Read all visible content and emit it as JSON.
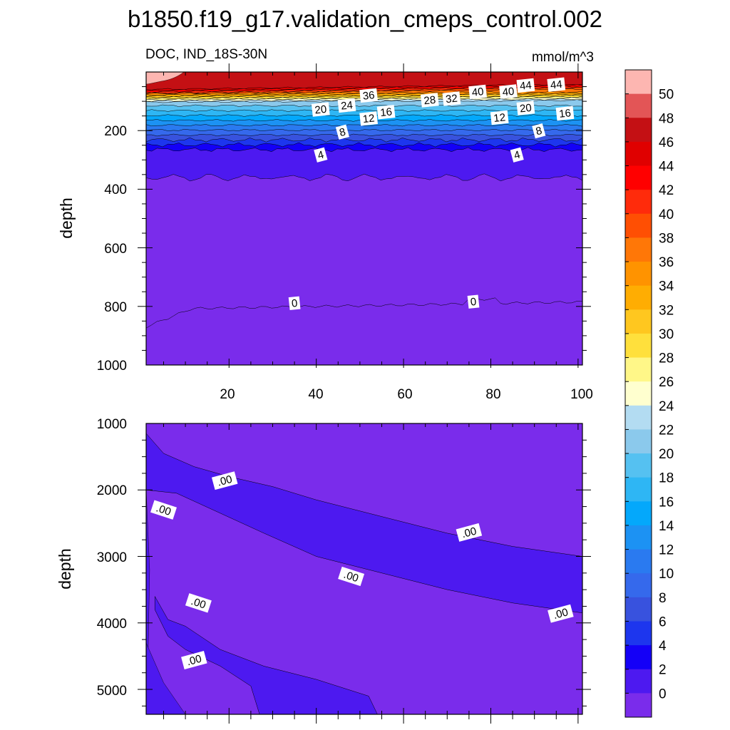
{
  "chart_data": {
    "title": "b1850.f19_g17.validation_cmeps_control.002",
    "variable_label": "DOC, IND_18S-30N",
    "units": "mmol/m^3",
    "type": "contour",
    "panels": [
      {
        "name": "upper",
        "xlabel": "",
        "ylabel": "depth",
        "xlim": [
          1,
          101
        ],
        "ylim": [
          1000,
          0
        ],
        "x_ticks": [
          "20",
          "40",
          "60",
          "80",
          "100"
        ],
        "y_ticks": [
          "200",
          "400",
          "600",
          "800",
          "1000"
        ],
        "contour_labels": [
          {
            "text": "44",
            "x": 88,
            "y": 46
          },
          {
            "text": "44",
            "x": 95,
            "y": 43
          },
          {
            "text": "40",
            "x": 77,
            "y": 68
          },
          {
            "text": "40",
            "x": 84,
            "y": 67
          },
          {
            "text": "36",
            "x": 52,
            "y": 80
          },
          {
            "text": "32",
            "x": 71,
            "y": 91
          },
          {
            "text": "28",
            "x": 66,
            "y": 96
          },
          {
            "text": "24",
            "x": 47,
            "y": 114
          },
          {
            "text": "20",
            "x": 41,
            "y": 128
          },
          {
            "text": "20",
            "x": 88,
            "y": 123
          },
          {
            "text": "16",
            "x": 56,
            "y": 137
          },
          {
            "text": "16",
            "x": 97,
            "y": 141
          },
          {
            "text": "12",
            "x": 52,
            "y": 159
          },
          {
            "text": "12",
            "x": 82,
            "y": 156
          },
          {
            "text": "8",
            "x": 46,
            "y": 205
          },
          {
            "text": "8",
            "x": 91,
            "y": 201
          },
          {
            "text": "4",
            "x": 41,
            "y": 283
          },
          {
            "text": "4",
            "x": 86,
            "y": 283
          },
          {
            "text": "0",
            "x": 35,
            "y": 789
          },
          {
            "text": "0",
            "x": 76,
            "y": 784
          }
        ]
      },
      {
        "name": "lower",
        "xlabel": "",
        "ylabel": "depth",
        "xlim": [
          1,
          101
        ],
        "ylim": [
          5375,
          1000
        ],
        "y_ticks": [
          "1000",
          "2000",
          "3000",
          "4000",
          "5000"
        ],
        "contour_labels": [
          {
            "text": ".00",
            "x": 19,
            "y": 1860
          },
          {
            "text": ".00",
            "x": 5,
            "y": 2300
          },
          {
            "text": ".00",
            "x": 75,
            "y": 2640
          },
          {
            "text": ".00",
            "x": 48,
            "y": 3300
          },
          {
            "text": ".00",
            "x": 96,
            "y": 3860
          },
          {
            "text": ".00",
            "x": 13,
            "y": 3700
          },
          {
            "text": ".00",
            "x": 12,
            "y": 4560
          }
        ]
      }
    ],
    "colorbar": {
      "labels": [
        "50",
        "48",
        "46",
        "44",
        "42",
        "40",
        "38",
        "36",
        "34",
        "32",
        "30",
        "28",
        "26",
        "24",
        "22",
        "20",
        "18",
        "16",
        "14",
        "12",
        "10",
        "8",
        "6",
        "4",
        "2",
        "0"
      ],
      "colors": [
        "#fdb6b1",
        "#e35556",
        "#c41014",
        "#e00000",
        "#ff0000",
        "#ff2b0b",
        "#ff4f03",
        "#ff7707",
        "#ff9300",
        "#ffad02",
        "#ffc71f",
        "#ffe03c",
        "#fff788",
        "#ffffcf",
        "#b3dcf2",
        "#8bc9ec",
        "#55c1f1",
        "#2eb6f4",
        "#04a8fb",
        "#1c92f3",
        "#2a7af0",
        "#3569ec",
        "#3852de",
        "#1d36ee",
        "#1400f7",
        "#4d19f0",
        "#7a2ceb"
      ]
    }
  }
}
